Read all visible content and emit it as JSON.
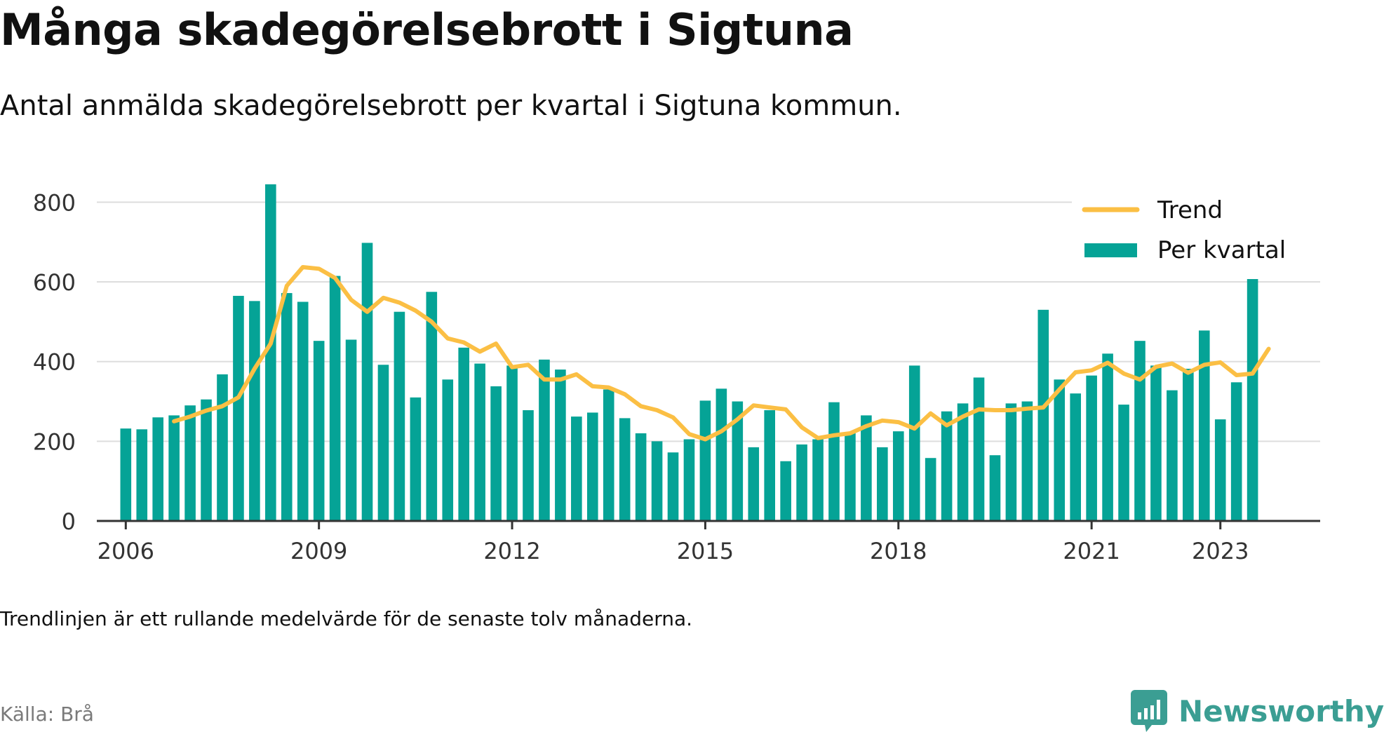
{
  "title": "Många skadegörelsebrott i Sigtuna",
  "subtitle": "Antal anmälda skadegörelsebrott per kvartal i Sigtuna kommun.",
  "note": "Trendlinjen är ett rullande medelvärde för de senaste tolv månaderna.",
  "source": "Källa: Brå",
  "brand": {
    "name": "Newsworthy",
    "icon": "newsworthy-chart-icon",
    "color": "#3b9e93"
  },
  "colors": {
    "bars": "#05a396",
    "trend": "#fbbf44",
    "grid": "#dddddd",
    "axis": "#333333"
  },
  "chart_data": {
    "type": "bar",
    "x_start": 2006.0,
    "x_step": 0.25,
    "xlim": [
      2005.55,
      2024.55
    ],
    "ylim": [
      0,
      850
    ],
    "yticks": [
      0,
      200,
      400,
      600,
      800
    ],
    "xticks": [
      2006,
      2009,
      2012,
      2015,
      2018,
      2021,
      2023
    ],
    "grid": true,
    "legend_position": "top-right",
    "series": [
      {
        "name": "Per kvartal",
        "type": "bar",
        "values": [
          232,
          230,
          260,
          265,
          290,
          305,
          368,
          565,
          552,
          845,
          572,
          550,
          452,
          615,
          455,
          698,
          392,
          525,
          310,
          575,
          355,
          435,
          395,
          338,
          390,
          278,
          405,
          380,
          262,
          272,
          330,
          258,
          220,
          200,
          172,
          205,
          302,
          332,
          300,
          185,
          278,
          150,
          192,
          205,
          298,
          220,
          265,
          185,
          225,
          390,
          158,
          275,
          295,
          360,
          165,
          295,
          300,
          530,
          355,
          320,
          365,
          420,
          292,
          452,
          390,
          328,
          382,
          478,
          255,
          348,
          622
        ]
      },
      {
        "name": "Trend",
        "type": "line",
        "start_index": 3,
        "values": [
          250,
          262,
          277,
          288,
          310,
          382,
          445,
          590,
          637,
          633,
          610,
          555,
          525,
          560,
          548,
          528,
          500,
          458,
          448,
          425,
          445,
          386,
          392,
          355,
          355,
          368,
          338,
          335,
          318,
          288,
          278,
          260,
          218,
          205,
          225,
          255,
          290,
          285,
          280,
          235,
          208,
          215,
          220,
          238,
          252,
          248,
          232,
          270,
          240,
          262,
          280,
          278,
          278,
          282,
          285,
          330,
          373,
          378,
          397,
          370,
          355,
          387,
          395,
          372,
          392,
          398,
          366,
          370,
          432
        ]
      }
    ]
  }
}
